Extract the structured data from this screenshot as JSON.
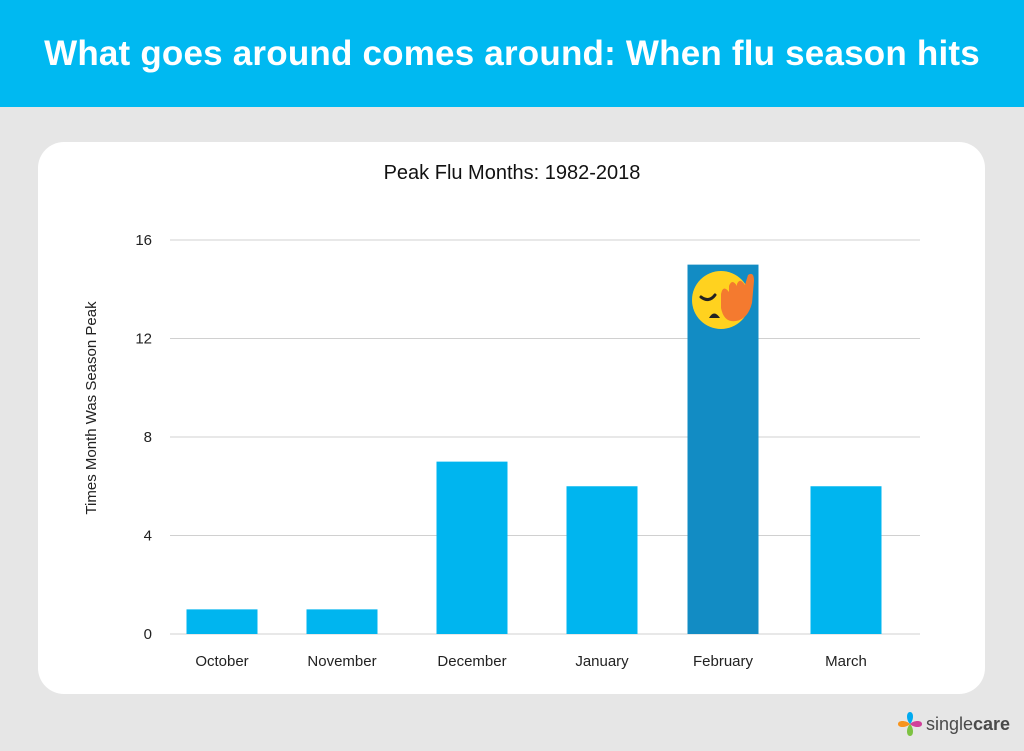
{
  "header": {
    "title": "What goes around comes around: When flu season hits"
  },
  "chart_data": {
    "type": "bar",
    "title": "Peak Flu Months: 1982-2018",
    "xlabel": "",
    "ylabel": "Times Month Was Season Peak",
    "categories": [
      "October",
      "November",
      "December",
      "January",
      "February",
      "March"
    ],
    "values": [
      1,
      1,
      7,
      6,
      15,
      6
    ],
    "ylim": [
      0,
      16
    ],
    "yticks": [
      0,
      4,
      8,
      12,
      16
    ],
    "grid": true,
    "colors": {
      "bar": "#00b5ef",
      "highlight": "#128cc4"
    },
    "highlight_category": "February",
    "annotation_icon": "face-palm-emoji"
  },
  "brand": {
    "name_light": "single",
    "name_bold": "care"
  }
}
